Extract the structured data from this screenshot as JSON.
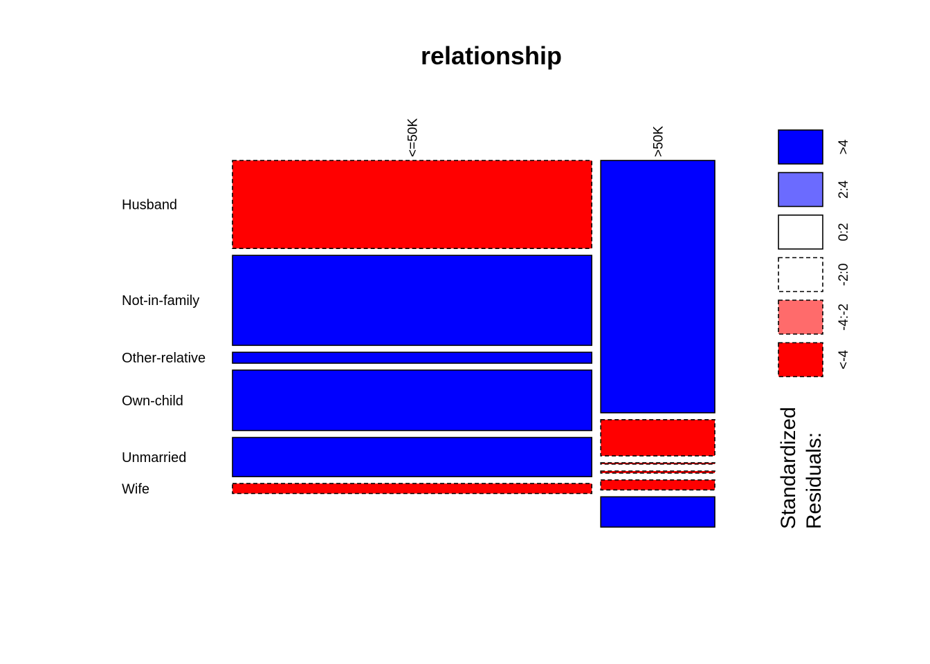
{
  "chart_data": {
    "type": "mosaic",
    "title": "relationship",
    "columns": [
      "<=50K",
      ">50K"
    ],
    "rows": [
      "Husband",
      "Not-in-family",
      "Other-relative",
      "Own-child",
      "Unmarried",
      "Wife"
    ],
    "column_proportions": [
      0.759,
      0.241
    ],
    "row_proportions": {
      "<=50K": [
        0.265,
        0.271,
        0.033,
        0.182,
        0.118,
        0.03
      ],
      ">50K": [
        0.76,
        0.109,
        0.004,
        0.006,
        0.03,
        0.091
      ]
    },
    "residual_class": {
      "<=50K": [
        "<-4",
        ">4",
        ">4",
        ">4",
        ">4",
        "<-4"
      ],
      ">50K": [
        ">4",
        "<-4",
        "<-4",
        "<-4",
        "<-4",
        ">4"
      ]
    },
    "legend": {
      "title_lines": [
        "Standardized",
        "Residuals:"
      ],
      "entries": [
        {
          "label": ">4",
          "color": "#0000ff",
          "dashed": false
        },
        {
          "label": "2:4",
          "color": "#6b6bff",
          "dashed": false
        },
        {
          "label": "0:2",
          "color": "#ffffff",
          "dashed": false
        },
        {
          "label": "-2:0",
          "color": "#ffffff",
          "dashed": true
        },
        {
          "label": "-4:-2",
          "color": "#ff6b6b",
          "dashed": true
        },
        {
          "label": "<-4",
          "color": "#ff0000",
          "dashed": true
        }
      ],
      "placement": "right"
    }
  }
}
